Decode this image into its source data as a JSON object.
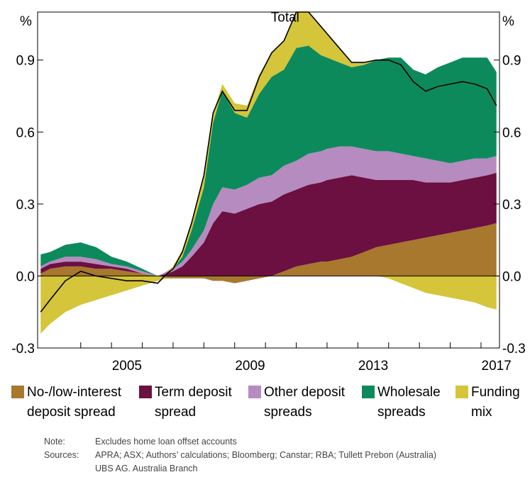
{
  "chart_data": {
    "type": "area",
    "title": "",
    "left_axis_label": "%",
    "right_axis_label": "%",
    "ylim": [
      -0.3,
      1.1
    ],
    "yticks": [
      -0.3,
      0.0,
      0.3,
      0.6,
      0.9
    ],
    "ytick_labels": [
      "-0.3",
      "0.0",
      "0.3",
      "0.6",
      "0.9"
    ],
    "xlim": [
      2002.6,
      2017.6
    ],
    "xtick_labels": [
      {
        "x": 2005,
        "label": "2005"
      },
      {
        "x": 2009,
        "label": "2009"
      },
      {
        "x": 2013,
        "label": "2013"
      },
      {
        "x": 2017,
        "label": "2017"
      }
    ],
    "x_minor_ticks": [
      2004,
      2005,
      2006,
      2007,
      2008,
      2009,
      2010,
      2011,
      2012,
      2013,
      2014,
      2015,
      2016,
      2017
    ],
    "x": [
      2002.7,
      2003.0,
      2003.5,
      2004.0,
      2004.5,
      2005.0,
      2005.5,
      2006.0,
      2006.5,
      2006.8,
      2007.0,
      2007.3,
      2007.6,
      2008.0,
      2008.3,
      2008.6,
      2009.0,
      2009.4,
      2009.8,
      2010.2,
      2010.6,
      2011.0,
      2011.4,
      2011.8,
      2012.0,
      2012.4,
      2012.8,
      2013.2,
      2013.6,
      2014.0,
      2014.4,
      2014.8,
      2015.2,
      2015.6,
      2016.0,
      2016.4,
      2016.8,
      2017.2,
      2017.5
    ],
    "series": [
      {
        "name": "No-/low-interest deposit spread",
        "color": "#a7782d",
        "values": [
          0.01,
          0.03,
          0.04,
          0.04,
          0.03,
          0.03,
          0.02,
          0.01,
          0.0,
          -0.01,
          -0.01,
          -0.01,
          -0.01,
          -0.01,
          -0.02,
          -0.02,
          -0.03,
          -0.02,
          -0.01,
          0.0,
          0.02,
          0.04,
          0.05,
          0.06,
          0.06,
          0.07,
          0.08,
          0.1,
          0.12,
          0.13,
          0.14,
          0.15,
          0.16,
          0.17,
          0.18,
          0.19,
          0.2,
          0.21,
          0.22
        ]
      },
      {
        "name": "Term deposit spread",
        "color": "#6b1040",
        "values": [
          0.02,
          0.02,
          0.02,
          0.02,
          0.02,
          0.01,
          0.01,
          0.0,
          0.0,
          0.01,
          0.02,
          0.04,
          0.08,
          0.14,
          0.22,
          0.27,
          0.26,
          0.28,
          0.3,
          0.31,
          0.32,
          0.32,
          0.33,
          0.33,
          0.34,
          0.34,
          0.34,
          0.31,
          0.28,
          0.27,
          0.26,
          0.25,
          0.23,
          0.22,
          0.21,
          0.21,
          0.21,
          0.21,
          0.21
        ]
      },
      {
        "name": "Other deposit spreads",
        "color": "#b58bc0",
        "values": [
          0.01,
          0.01,
          0.02,
          0.02,
          0.02,
          0.01,
          0.01,
          0.01,
          0.0,
          0.01,
          0.01,
          0.02,
          0.03,
          0.05,
          0.08,
          0.1,
          0.1,
          0.1,
          0.11,
          0.11,
          0.12,
          0.12,
          0.13,
          0.13,
          0.13,
          0.13,
          0.12,
          0.12,
          0.12,
          0.12,
          0.11,
          0.1,
          0.1,
          0.09,
          0.08,
          0.08,
          0.08,
          0.07,
          0.07
        ]
      },
      {
        "name": "Wholesale spreads",
        "color": "#0d8a5c",
        "values": [
          0.05,
          0.04,
          0.05,
          0.06,
          0.05,
          0.03,
          0.02,
          0.01,
          0.0,
          0.0,
          0.0,
          0.02,
          0.08,
          0.18,
          0.34,
          0.4,
          0.32,
          0.28,
          0.35,
          0.41,
          0.4,
          0.47,
          0.45,
          0.4,
          0.38,
          0.35,
          0.33,
          0.35,
          0.38,
          0.39,
          0.4,
          0.36,
          0.35,
          0.39,
          0.42,
          0.43,
          0.42,
          0.42,
          0.35
        ]
      },
      {
        "name": "Funding mix",
        "color": "#d4c53a",
        "values": [
          -0.24,
          -0.2,
          -0.15,
          -0.12,
          -0.1,
          -0.08,
          -0.06,
          -0.04,
          -0.02,
          0.0,
          0.01,
          0.03,
          0.04,
          0.05,
          0.04,
          0.03,
          0.04,
          0.05,
          0.08,
          0.1,
          0.12,
          0.15,
          0.14,
          0.12,
          0.1,
          0.06,
          0.02,
          0.01,
          0.0,
          -0.01,
          -0.03,
          -0.05,
          -0.07,
          -0.08,
          -0.09,
          -0.1,
          -0.11,
          -0.13,
          -0.14
        ]
      }
    ],
    "total_line": {
      "name": "Total",
      "color": "#000000",
      "values": [
        -0.15,
        -0.1,
        -0.02,
        0.02,
        0.0,
        -0.01,
        -0.02,
        -0.02,
        -0.03,
        0.01,
        0.03,
        0.1,
        0.22,
        0.42,
        0.68,
        0.77,
        0.69,
        0.69,
        0.83,
        0.93,
        0.98,
        1.1,
        1.1,
        1.04,
        1.01,
        0.95,
        0.89,
        0.89,
        0.9,
        0.9,
        0.88,
        0.81,
        0.77,
        0.79,
        0.8,
        0.81,
        0.8,
        0.78,
        0.71
      ]
    },
    "annotations": [
      {
        "text": "Total",
        "x": 2011.1,
        "y": 1.06
      }
    ],
    "grid": false,
    "legend_placement": "bottom"
  },
  "notes": [
    {
      "label": "Note:",
      "text": "Excludes home loan offset accounts"
    },
    {
      "label": "Sources:",
      "text": "APRA; ASX; Authors’ calculations; Bloomberg; Canstar; RBA; Tullett Prebon (Australia)"
    },
    {
      "label": "",
      "text": "UBS AG. Australia Branch"
    }
  ],
  "legend": [
    {
      "line1": "No-/low-interest",
      "line2": "deposit spread",
      "color": "#a7782d"
    },
    {
      "line1": "Term deposit",
      "line2": "spread",
      "color": "#6b1040"
    },
    {
      "line1": "Other deposit",
      "line2": "spreads",
      "color": "#b58bc0"
    },
    {
      "line1": "Wholesale",
      "line2": "spreads",
      "color": "#0d8a5c"
    },
    {
      "line1": "Funding",
      "line2": "mix",
      "color": "#d4c53a"
    }
  ]
}
